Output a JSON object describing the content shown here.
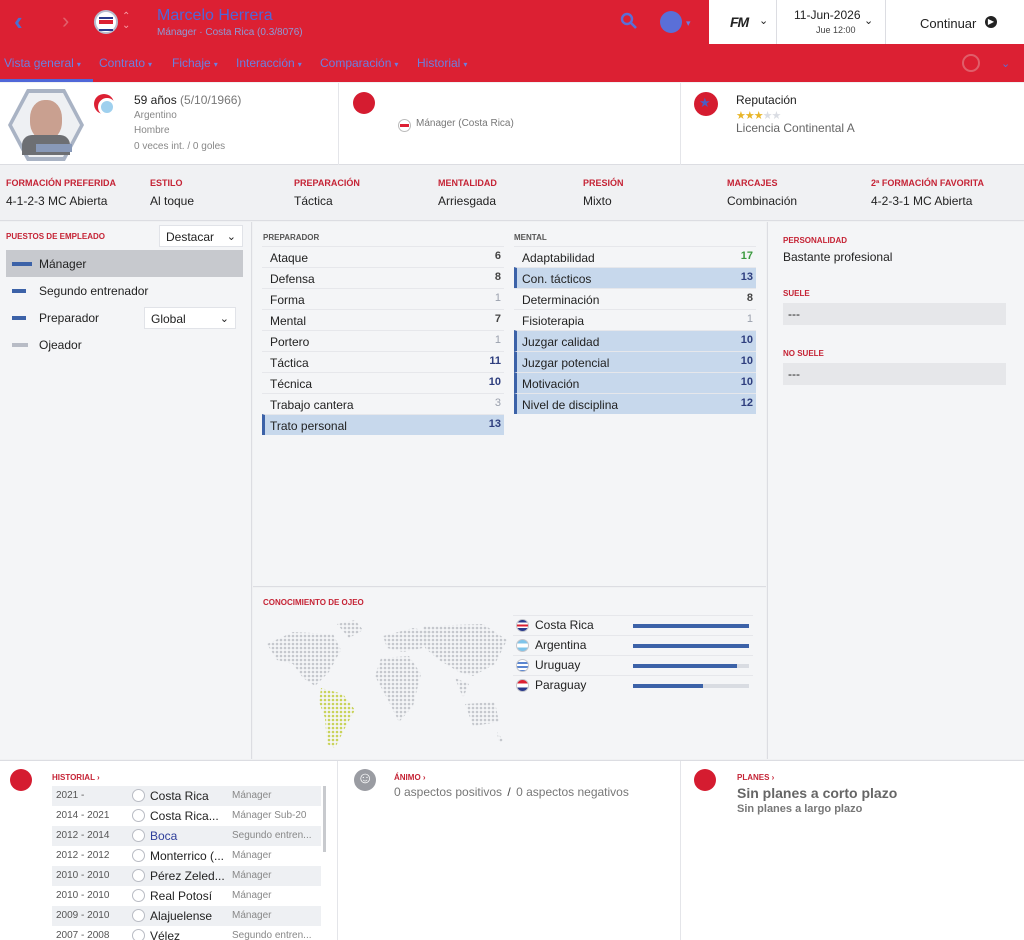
{
  "header": {
    "title": "Marcelo Herrera",
    "subtitle": "Mánager · Costa Rica (0.3/8076)",
    "fm_label": "FM",
    "date": "11-Jun-2026",
    "day_time": "Jue 12:00",
    "continue_label": "Continuar"
  },
  "tabs": [
    {
      "label": "Vista general"
    },
    {
      "label": "Contrato"
    },
    {
      "label": "Fichaje"
    },
    {
      "label": "Interacción"
    },
    {
      "label": "Comparación"
    },
    {
      "label": "Historial"
    }
  ],
  "profile": {
    "age": "59 años",
    "dob": "(5/10/1966)",
    "nationality": "Argentino",
    "gender": "Hombre",
    "caps": "0 veces int. / 0 goles",
    "photo_tag": "HERRERA",
    "role": "Mánager (Costa Rica)",
    "reputation_label": "Reputación",
    "reputation_stars": 2.5,
    "license": "Licencia Continental A"
  },
  "tactics": [
    {
      "label": "Formación preferida",
      "value": "4-1-2-3 MC Abierta"
    },
    {
      "label": "Estilo",
      "value": "Al toque"
    },
    {
      "label": "Preparación",
      "value": "Táctica"
    },
    {
      "label": "Mentalidad",
      "value": "Arriesgada"
    },
    {
      "label": "Presión",
      "value": "Mixto"
    },
    {
      "label": "Marcajes",
      "value": "Combinación"
    },
    {
      "label": "2ª formación favorita",
      "value": "4-2-3-1 MC Abierta"
    }
  ],
  "roles": {
    "header": "Puestos de empleado",
    "filter_value": "Destacar",
    "coach_select": "Global",
    "items": [
      {
        "label": "Mánager",
        "bar_color": "#3c62a8"
      },
      {
        "label": "Segundo entrenador",
        "bar_color": "#3c62a8"
      },
      {
        "label": "Preparador",
        "bar_color": "#3c62a8"
      },
      {
        "label": "Ojeador",
        "bar_color": "#b8bcc6"
      }
    ]
  },
  "attributes": {
    "coach_header": "Preparador",
    "mental_header": "Mental",
    "coach": [
      {
        "name": "Ataque",
        "value": "6"
      },
      {
        "name": "Defensa",
        "value": "8"
      },
      {
        "name": "Forma",
        "value": "1"
      },
      {
        "name": "Mental",
        "value": "7"
      },
      {
        "name": "Portero",
        "value": "1"
      },
      {
        "name": "Táctica",
        "value": "11"
      },
      {
        "name": "Técnica",
        "value": "10"
      },
      {
        "name": "Trabajo cantera",
        "value": "3"
      },
      {
        "name": "Trato personal",
        "value": "13"
      }
    ],
    "mental": [
      {
        "name": "Adaptabilidad",
        "value": "17"
      },
      {
        "name": "Con. tácticos",
        "value": "13"
      },
      {
        "name": "Determinación",
        "value": "8"
      },
      {
        "name": "Fisioterapia",
        "value": "1"
      },
      {
        "name": "Juzgar calidad",
        "value": "10"
      },
      {
        "name": "Juzgar potencial",
        "value": "10"
      },
      {
        "name": "Motivación",
        "value": "10"
      },
      {
        "name": "Nivel de disciplina",
        "value": "12"
      }
    ]
  },
  "knowledge": {
    "header": "Conocimiento de ojeo",
    "items": [
      {
        "country": "Costa Rica",
        "level": 1.0
      },
      {
        "country": "Argentina",
        "level": 1.0
      },
      {
        "country": "Uruguay",
        "level": 0.9
      },
      {
        "country": "Paraguay",
        "level": 0.6
      }
    ]
  },
  "personality": {
    "header": "Personalidad",
    "value": "Bastante profesional",
    "usually_header": "Suele",
    "usually_value": "---",
    "never_header": "No suele",
    "never_value": "---"
  },
  "history": {
    "header": "Historial",
    "rows": [
      {
        "years": "2021 -",
        "club": "Costa Rica",
        "role": "Mánager"
      },
      {
        "years": "2014 - 2021",
        "club": "Costa Rica...",
        "role": "Mánager Sub-20"
      },
      {
        "years": "2012 - 2014",
        "club": "Boca",
        "role": "Segundo entren..."
      },
      {
        "years": "2012 - 2012",
        "club": "Monterrico (...",
        "role": "Mánager"
      },
      {
        "years": "2010 - 2010",
        "club": "Pérez Zeled...",
        "role": "Mánager"
      },
      {
        "years": "2010 - 2010",
        "club": "Real Potosí",
        "role": "Mánager"
      },
      {
        "years": "2009 - 2010",
        "club": "Alajuelense",
        "role": "Mánager"
      },
      {
        "years": "2007 - 2008",
        "club": "Vélez",
        "role": "Segundo entren..."
      }
    ]
  },
  "mood": {
    "header": "Ánimo",
    "positive": "0 aspectos positivos",
    "separator": "/",
    "negative": "0 aspectos negativos"
  },
  "plans": {
    "header": "Planes",
    "short": "Sin planes a corto plazo",
    "long": "Sin planes a largo plazo"
  }
}
